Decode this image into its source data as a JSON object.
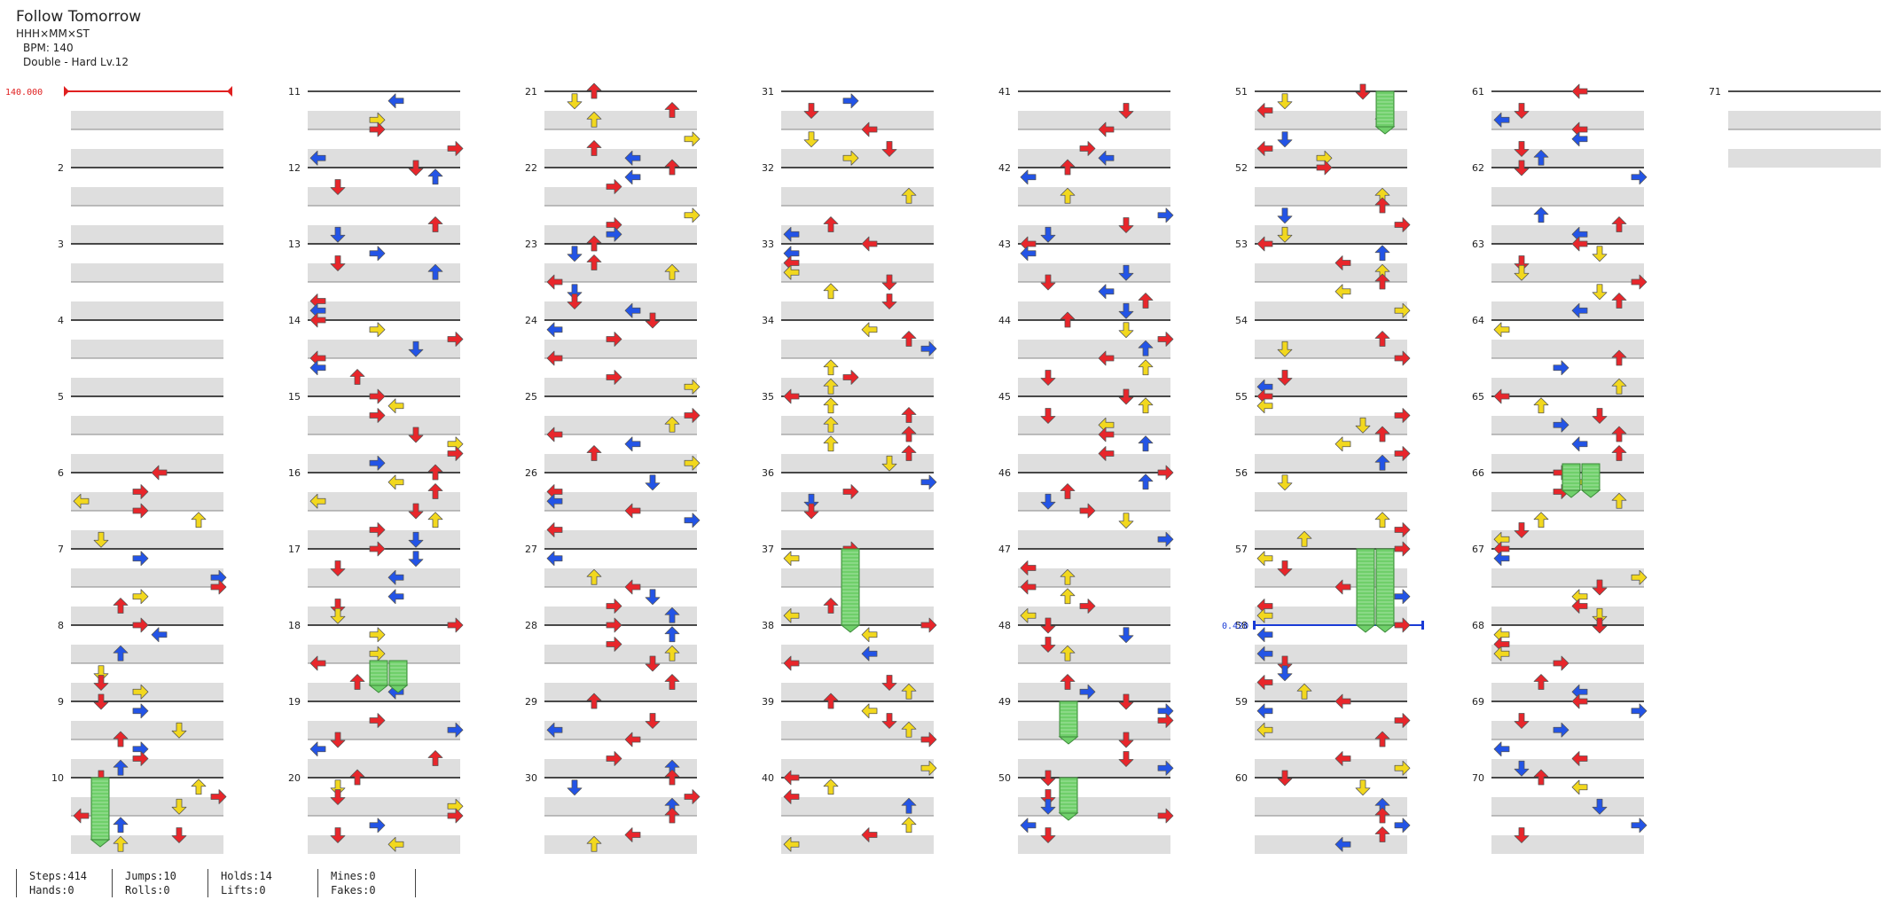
{
  "song": {
    "title": "Follow Tomorrow",
    "artist": "HHH×MM×ST",
    "bpm_label": "BPM: 140",
    "difficulty": "Double - Hard Lv.12"
  },
  "bpm_marker": "140.000",
  "speed_marker": "0.420",
  "marker_colors": {
    "bpm": "#e02020",
    "speed": "#1a3bd6"
  },
  "arrow_colors": {
    "quarter": "#e8262b",
    "eighth": "#2354e6",
    "sixteenth": "#f2d81e",
    "hold": "#6fcf6a"
  },
  "measure_labels": [
    "2",
    "3",
    "4",
    "5",
    "6",
    "7",
    "8",
    "9",
    "10",
    "11",
    "12",
    "13",
    "14",
    "15",
    "16",
    "17",
    "18",
    "19",
    "20",
    "21",
    "22",
    "23",
    "24",
    "25",
    "26",
    "27",
    "28",
    "29",
    "30",
    "31",
    "32",
    "33",
    "34",
    "35",
    "36",
    "37",
    "38",
    "39",
    "40",
    "41",
    "42",
    "43",
    "44",
    "45",
    "46",
    "47",
    "48",
    "49",
    "50",
    "51",
    "52",
    "53",
    "54",
    "55",
    "56",
    "57",
    "58",
    "59",
    "60",
    "61",
    "62",
    "63",
    "64",
    "65",
    "66",
    "67",
    "68",
    "69",
    "70",
    "71"
  ],
  "stats": {
    "steps": "Steps:414",
    "hands": "Hands:0",
    "jumps": "Jumps:10",
    "rolls": "Rolls:0",
    "holds": "Holds:14",
    "lifts": "Lifts:0",
    "mines": "Mines:0",
    "fakes": "Fakes:0"
  }
}
